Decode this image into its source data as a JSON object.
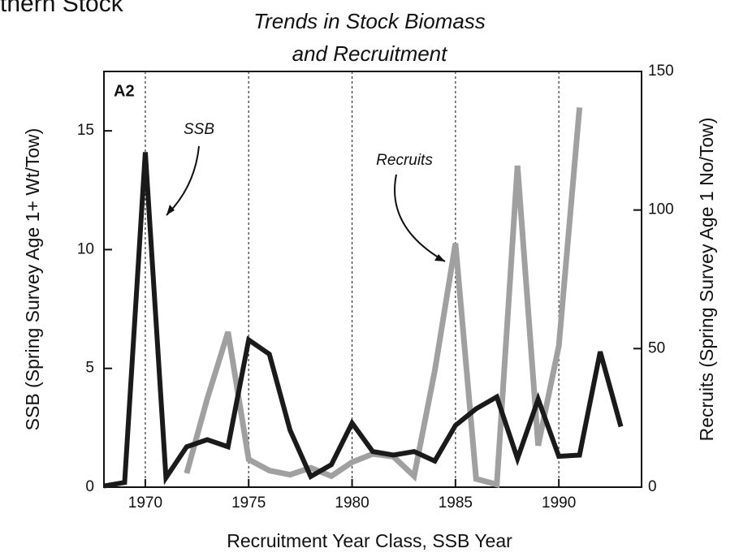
{
  "chart_data": {
    "type": "line",
    "header_fragment": "thern Stock",
    "title": [
      "Trends in Stock Biomass",
      "and Recruitment"
    ],
    "panel_label": "A2",
    "annotations": [
      "SSB",
      "Recruits"
    ],
    "x_label": "Recruitment Year Class, SSB Year",
    "y_label": "SSB (Spring Survey Age 1+ Wt/Tow)",
    "y2_label": "Recruits (Spring Survey Age 1 No/Tow)",
    "x": [
      1968,
      1969,
      1970,
      1971,
      1972,
      1973,
      1974,
      1975,
      1976,
      1977,
      1978,
      1979,
      1980,
      1981,
      1982,
      1983,
      1984,
      1985,
      1986,
      1987,
      1988,
      1989,
      1990,
      1991,
      1992,
      1993
    ],
    "series": [
      {
        "name": "SSB",
        "color": "#1a1a1a",
        "axis": "y",
        "values": [
          0.05,
          0.2,
          14.1,
          0.4,
          1.7,
          2.0,
          1.7,
          6.2,
          5.6,
          2.4,
          0.45,
          0.95,
          2.7,
          1.5,
          1.35,
          1.5,
          1.1,
          2.6,
          3.3,
          3.8,
          1.2,
          3.7,
          1.3,
          1.35,
          5.7,
          2.55
        ]
      },
      {
        "name": "Recruits",
        "color": "#a0a0a0",
        "axis": "y2",
        "values": [
          null,
          null,
          null,
          null,
          5,
          32,
          56,
          10,
          6,
          4.5,
          7,
          4,
          9,
          12,
          11,
          4,
          42,
          88,
          3,
          1,
          116,
          15,
          51,
          137,
          null,
          null
        ]
      }
    ],
    "xlim": [
      1968,
      1994
    ],
    "xticks": [
      1970,
      1975,
      1980,
      1985,
      1990
    ],
    "ylim": [
      0,
      17.5
    ],
    "yticks": [
      0,
      5,
      10,
      15
    ],
    "y2lim": [
      0,
      150
    ],
    "y2ticks": [
      0,
      50,
      100,
      150
    ],
    "grid": "x"
  }
}
